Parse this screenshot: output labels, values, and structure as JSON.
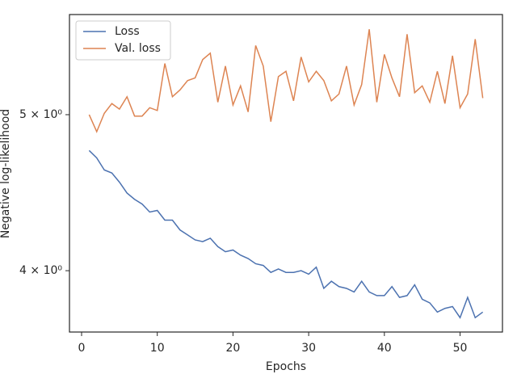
{
  "chart_data": {
    "type": "line",
    "xlabel": "Epochs",
    "ylabel": "Negative log-likelihood",
    "x": [
      1,
      2,
      3,
      4,
      5,
      6,
      7,
      8,
      9,
      10,
      11,
      12,
      13,
      14,
      15,
      16,
      17,
      18,
      19,
      20,
      21,
      22,
      23,
      24,
      25,
      26,
      27,
      28,
      29,
      30,
      31,
      32,
      33,
      34,
      35,
      36,
      37,
      38,
      39,
      40,
      41,
      42,
      43,
      44,
      45,
      46,
      47,
      48,
      49,
      50,
      51,
      52,
      53
    ],
    "series": [
      {
        "name": "Loss",
        "color": "#4c72b0",
        "values": [
          4.75,
          4.7,
          4.62,
          4.6,
          4.54,
          4.47,
          4.43,
          4.4,
          4.35,
          4.36,
          4.3,
          4.3,
          4.24,
          4.21,
          4.18,
          4.17,
          4.19,
          4.14,
          4.11,
          4.12,
          4.09,
          4.07,
          4.04,
          4.03,
          3.99,
          4.01,
          3.99,
          3.99,
          4.0,
          3.98,
          4.02,
          3.9,
          3.94,
          3.91,
          3.9,
          3.88,
          3.94,
          3.88,
          3.86,
          3.86,
          3.91,
          3.85,
          3.86,
          3.92,
          3.84,
          3.82,
          3.77,
          3.79,
          3.8,
          3.74,
          3.85,
          3.74,
          3.77
        ]
      },
      {
        "name": "Val. loss",
        "color": "#dd8452",
        "values": [
          5.0,
          4.88,
          5.01,
          5.08,
          5.04,
          5.13,
          4.99,
          4.99,
          5.05,
          5.03,
          5.38,
          5.13,
          5.18,
          5.25,
          5.27,
          5.41,
          5.46,
          5.09,
          5.36,
          5.07,
          5.21,
          5.02,
          5.52,
          5.36,
          4.95,
          5.28,
          5.32,
          5.1,
          5.43,
          5.24,
          5.32,
          5.25,
          5.1,
          5.15,
          5.36,
          5.07,
          5.22,
          5.65,
          5.09,
          5.45,
          5.27,
          5.13,
          5.61,
          5.16,
          5.21,
          5.09,
          5.32,
          5.08,
          5.44,
          5.05,
          5.15,
          5.57,
          5.12
        ]
      }
    ],
    "xlim": [
      -1.6,
      55.6
    ],
    "xticks": [
      0,
      10,
      20,
      30,
      40,
      50
    ],
    "ylim": [
      3.664,
      5.77
    ],
    "yscale": "log",
    "yticks": [
      {
        "value": 4,
        "label": "4 × 10⁰"
      },
      {
        "value": 5,
        "label": "5 × 10⁰"
      }
    ],
    "legend": "upper left"
  }
}
